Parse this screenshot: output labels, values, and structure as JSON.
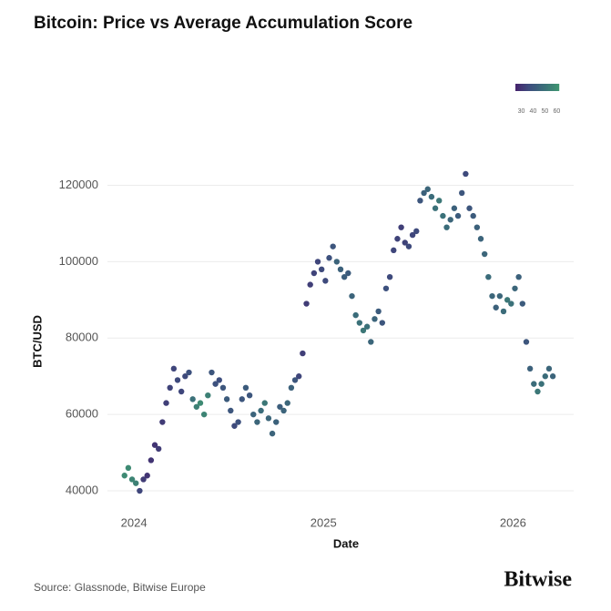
{
  "chart_data": {
    "type": "scatter",
    "title": "Bitcoin: Price vs Average Accumulation Score",
    "x_label": "Date",
    "y_label": "BTC/USD",
    "source": "Source: Glassnode, Bitwise Europe",
    "brand": "Bitwise",
    "xlim": [
      2023.86,
      2026.32
    ],
    "xticks": [
      2024,
      2025,
      2026
    ],
    "ylim": [
      35000,
      128000
    ],
    "yticks": [
      40000,
      60000,
      80000,
      100000,
      120000
    ],
    "grid": true,
    "colormap": [
      "#46226c",
      "#3d4f7e",
      "#3b7079",
      "#3f9670"
    ],
    "clim": [
      25,
      62
    ],
    "cticks": [
      30,
      40,
      50,
      60
    ],
    "x": [
      2023.95,
      2023.97,
      2023.99,
      2024.01,
      2024.03,
      2024.05,
      2024.07,
      2024.09,
      2024.11,
      2024.13,
      2024.15,
      2024.17,
      2024.19,
      2024.21,
      2024.23,
      2024.25,
      2024.27,
      2024.29,
      2024.31,
      2024.33,
      2024.35,
      2024.37,
      2024.39,
      2024.41,
      2024.43,
      2024.45,
      2024.47,
      2024.49,
      2024.51,
      2024.53,
      2024.55,
      2024.57,
      2024.59,
      2024.61,
      2024.63,
      2024.65,
      2024.67,
      2024.69,
      2024.71,
      2024.73,
      2024.75,
      2024.77,
      2024.79,
      2024.81,
      2024.83,
      2024.85,
      2024.87,
      2024.89,
      2024.91,
      2024.93,
      2024.95,
      2024.97,
      2024.99,
      2025.01,
      2025.03,
      2025.05,
      2025.07,
      2025.09,
      2025.11,
      2025.13,
      2025.15,
      2025.17,
      2025.19,
      2025.21,
      2025.23,
      2025.25,
      2025.27,
      2025.29,
      2025.31,
      2025.33,
      2025.35,
      2025.37,
      2025.39,
      2025.41,
      2025.43,
      2025.45,
      2025.47,
      2025.49,
      2025.51,
      2025.53,
      2025.55,
      2025.57,
      2025.59,
      2025.61,
      2025.63,
      2025.65,
      2025.67,
      2025.69,
      2025.71,
      2025.73,
      2025.75,
      2025.77,
      2025.79,
      2025.81,
      2025.83,
      2025.85,
      2025.87,
      2025.89,
      2025.91,
      2025.93,
      2025.95,
      2025.97,
      2025.99,
      2026.01,
      2026.03,
      2026.05,
      2026.07,
      2026.09,
      2026.11,
      2026.13,
      2026.15,
      2026.17,
      2026.19,
      2026.21
    ],
    "values": [
      44000,
      46000,
      43000,
      42000,
      40000,
      43000,
      44000,
      48000,
      52000,
      51000,
      58000,
      63000,
      67000,
      72000,
      69000,
      66000,
      70000,
      71000,
      64000,
      62000,
      63000,
      60000,
      65000,
      71000,
      68000,
      69000,
      67000,
      64000,
      61000,
      57000,
      58000,
      64000,
      67000,
      65000,
      60000,
      58000,
      61000,
      63000,
      59000,
      55000,
      58000,
      62000,
      61000,
      63000,
      67000,
      69000,
      70000,
      76000,
      89000,
      94000,
      97000,
      100000,
      98000,
      95000,
      101000,
      104000,
      100000,
      98000,
      96000,
      97000,
      91000,
      86000,
      84000,
      82000,
      83000,
      79000,
      85000,
      87000,
      84000,
      93000,
      96000,
      103000,
      106000,
      109000,
      105000,
      104000,
      107000,
      108000,
      116000,
      118000,
      119000,
      117000,
      114000,
      116000,
      112000,
      109000,
      111000,
      114000,
      112000,
      118000,
      123000,
      114000,
      112000,
      109000,
      106000,
      102000,
      96000,
      91000,
      88000,
      91000,
      87000,
      90000,
      89000,
      93000,
      96000,
      89000,
      79000,
      72000,
      68000,
      66000,
      68000,
      70000,
      72000,
      70000
    ],
    "scores": [
      58,
      58,
      56,
      55,
      35,
      32,
      30,
      30,
      30,
      32,
      32,
      33,
      34,
      35,
      36,
      35,
      36,
      38,
      50,
      55,
      58,
      56,
      55,
      40,
      38,
      37,
      40,
      42,
      40,
      36,
      38,
      40,
      42,
      40,
      45,
      46,
      48,
      52,
      46,
      45,
      44,
      43,
      45,
      46,
      44,
      40,
      35,
      33,
      32,
      33,
      34,
      35,
      36,
      36,
      38,
      40,
      45,
      44,
      43,
      42,
      45,
      48,
      50,
      52,
      50,
      46,
      45,
      42,
      40,
      38,
      36,
      35,
      34,
      33,
      34,
      36,
      35,
      36,
      40,
      44,
      46,
      48,
      50,
      52,
      50,
      48,
      46,
      44,
      42,
      40,
      36,
      40,
      42,
      44,
      45,
      46,
      48,
      46,
      44,
      46,
      48,
      52,
      50,
      46,
      44,
      42,
      40,
      44,
      48,
      52,
      50,
      48,
      46,
      45
    ]
  }
}
